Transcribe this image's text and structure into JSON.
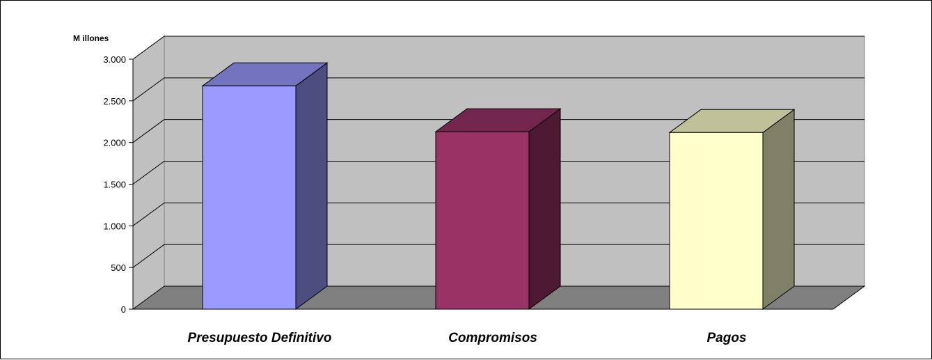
{
  "chart_data": {
    "type": "bar",
    "style": "3d-column",
    "unit_label": "M illones",
    "categories": [
      "Presupuesto Definitivo",
      "Compromisos",
      "Pagos"
    ],
    "values": [
      2680,
      2130,
      2120
    ],
    "ylim": [
      0,
      3000
    ],
    "y_ticks": [
      0,
      500,
      1000,
      1500,
      2000,
      2500,
      3000
    ],
    "y_tick_labels": [
      "0",
      "500",
      "1.000",
      "1.500",
      "2.000",
      "2.500",
      "3.000"
    ],
    "grid": true,
    "legend": "none",
    "colors": {
      "bars": [
        {
          "front": "#9999ff",
          "top": "#7373c0",
          "side": "#4d4d80"
        },
        {
          "front": "#993366",
          "top": "#73264d",
          "side": "#4d1933"
        },
        {
          "front": "#ffffcc",
          "top": "#c0c099",
          "side": "#808066"
        }
      ],
      "back_wall": "#c0c0c0",
      "side_wall": "#c0c0c0",
      "floor": "#808080",
      "gridline": "#000000"
    }
  }
}
